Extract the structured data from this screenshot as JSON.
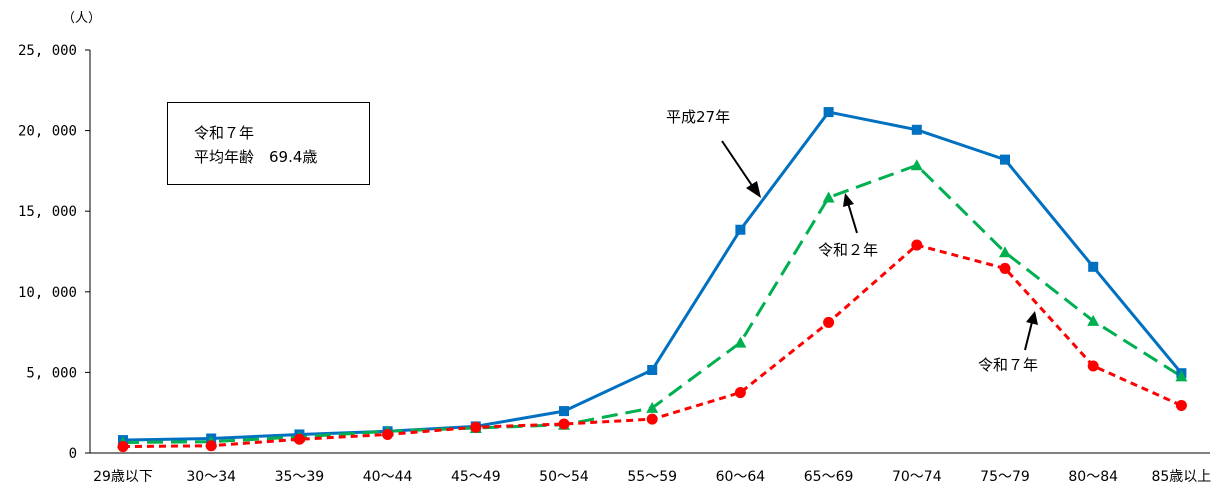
{
  "chart_data": {
    "type": "line",
    "unit_label": "（人）",
    "categories": [
      "29歳以下",
      "30～34",
      "35～39",
      "40～44",
      "45～49",
      "50～54",
      "55～59",
      "60～64",
      "65～69",
      "70～74",
      "75～79",
      "80～84",
      "85歳以上"
    ],
    "y_ticks": [
      "0",
      "5, 000",
      "10, 000",
      "15, 000",
      "20, 000",
      "25, 000"
    ],
    "ylim": [
      0,
      25000
    ],
    "series": [
      {
        "name": "平成27年",
        "color": "#0070c0",
        "marker": "square",
        "line_style": "solid",
        "values": [
          800,
          900,
          1150,
          1350,
          1650,
          2600,
          5150,
          13850,
          21150,
          20050,
          18200,
          11550,
          4950
        ]
      },
      {
        "name": "令和２年",
        "color": "#00b050",
        "marker": "triangle",
        "line_style": "dashed",
        "values": [
          650,
          700,
          1000,
          1350,
          1550,
          1750,
          2800,
          6850,
          15850,
          17850,
          12450,
          8200,
          4750
        ]
      },
      {
        "name": "令和７年",
        "color": "#ff0000",
        "marker": "circle",
        "line_style": "dotted",
        "values": [
          400,
          450,
          850,
          1150,
          1600,
          1800,
          2100,
          3750,
          8100,
          12900,
          11450,
          5400,
          2950
        ]
      }
    ],
    "annotation_box": {
      "line1": "令和７年",
      "line2": "平均年齢　69.4歳"
    },
    "grid": false
  }
}
